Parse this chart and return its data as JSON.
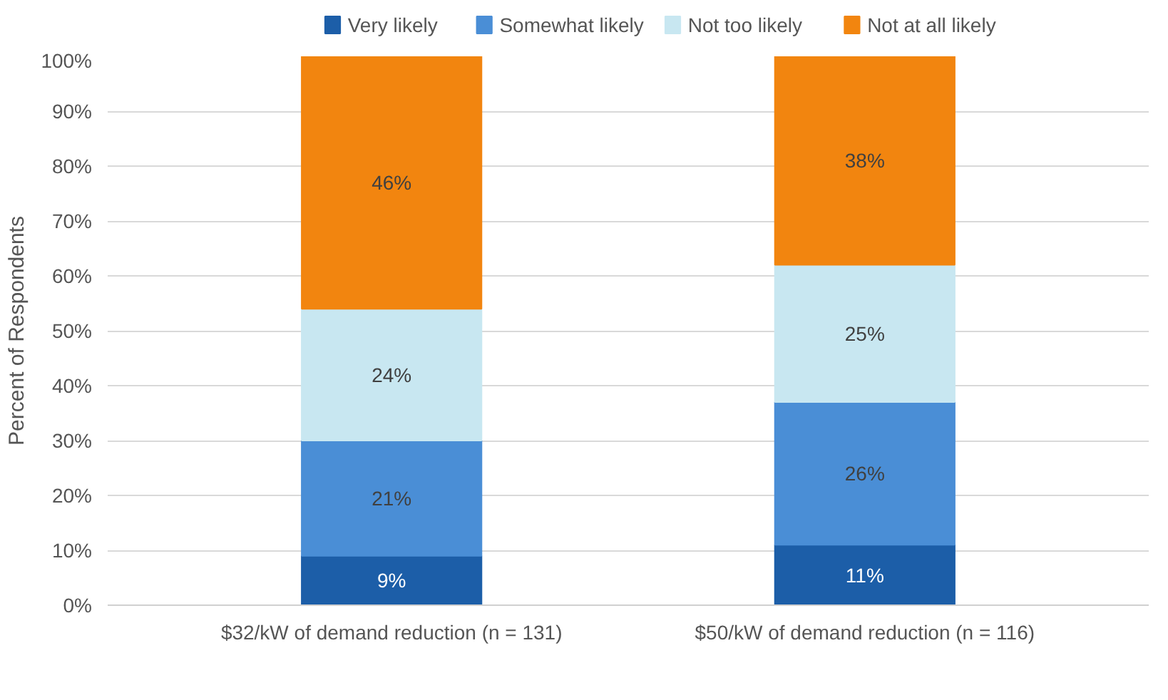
{
  "chart_data": {
    "type": "bar",
    "stacked": true,
    "ylabel": "Percent of Respondents",
    "categories": [
      "$32/kW of demand reduction (n = 131)",
      "$50/kW of demand reduction (n = 116)"
    ],
    "series": [
      {
        "name": "Very likely",
        "color": "#1c5ea8",
        "values": [
          9,
          11
        ],
        "value_labels": [
          "9%",
          "11%"
        ]
      },
      {
        "name": "Somewhat likely",
        "color": "#4a8ed6",
        "values": [
          21,
          26
        ],
        "value_labels": [
          "21%",
          "26%"
        ]
      },
      {
        "name": "Not too likely",
        "color": "#c8e7f1",
        "values": [
          24,
          25
        ],
        "value_labels": [
          "24%",
          "25%"
        ]
      },
      {
        "name": "Not at all likely",
        "color": "#f2850f",
        "values": [
          46,
          38
        ],
        "value_labels": [
          "46%",
          "38%"
        ]
      }
    ],
    "ylim": [
      0,
      100
    ],
    "yticks": [
      {
        "value": 0,
        "label": "0%"
      },
      {
        "value": 10,
        "label": "10%"
      },
      {
        "value": 20,
        "label": "20%"
      },
      {
        "value": 30,
        "label": "30%"
      },
      {
        "value": 40,
        "label": "40%"
      },
      {
        "value": 50,
        "label": "50%"
      },
      {
        "value": 60,
        "label": "60%"
      },
      {
        "value": 70,
        "label": "70%"
      },
      {
        "value": 80,
        "label": "80%"
      },
      {
        "value": 90,
        "label": "90%"
      },
      {
        "value": 100,
        "label": "100%"
      }
    ],
    "grid": "y",
    "legend": "top"
  }
}
